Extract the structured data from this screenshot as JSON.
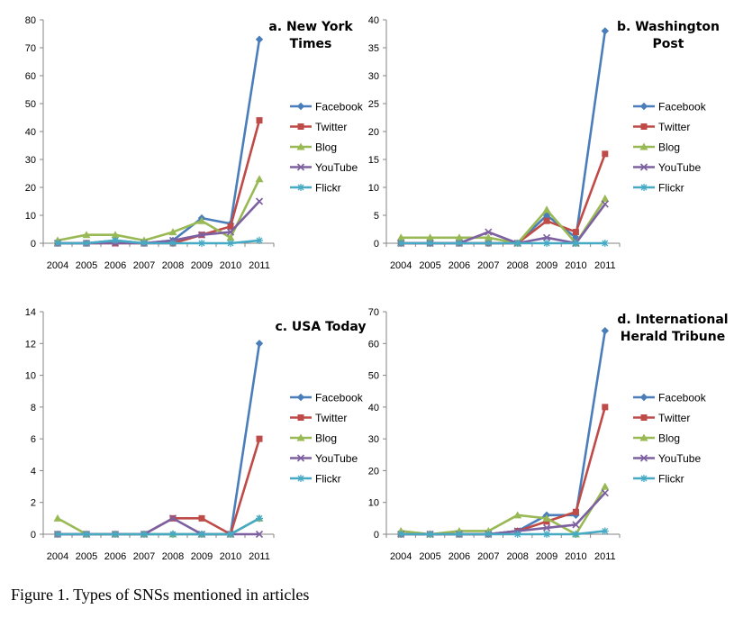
{
  "caption": "Figure 1. Types of SNSs mentioned in articles",
  "chart_data": [
    {
      "type": "line",
      "title_lines": [
        "a. New York",
        "Times"
      ],
      "categories": [
        "2004",
        "2005",
        "2006",
        "2007",
        "2008",
        "2009",
        "2010",
        "2011"
      ],
      "ylim": [
        0,
        80
      ],
      "yticks": [
        0,
        10,
        20,
        30,
        40,
        50,
        60,
        70,
        80
      ],
      "series": [
        {
          "name": "Facebook",
          "color": "#4a7ebb",
          "marker": "diamond",
          "values": [
            0,
            0,
            1,
            0,
            1,
            9,
            7,
            73
          ]
        },
        {
          "name": "Twitter",
          "color": "#be4b48",
          "marker": "square",
          "values": [
            0,
            0,
            0,
            0,
            0,
            3,
            6,
            44
          ]
        },
        {
          "name": "Blog",
          "color": "#98b954",
          "marker": "triangle",
          "values": [
            1,
            3,
            3,
            1,
            4,
            8,
            2,
            23
          ]
        },
        {
          "name": "YouTube",
          "color": "#7d60a0",
          "marker": "x",
          "values": [
            0,
            0,
            0,
            0,
            1,
            3,
            4,
            15
          ]
        },
        {
          "name": "Flickr",
          "color": "#46aac5",
          "marker": "star",
          "values": [
            0,
            0,
            1,
            0,
            0,
            0,
            0,
            1
          ]
        }
      ]
    },
    {
      "type": "line",
      "title_lines": [
        "b. Washington",
        "Post"
      ],
      "categories": [
        "2004",
        "2005",
        "2006",
        "2007",
        "2008",
        "2009",
        "2010",
        "2011"
      ],
      "ylim": [
        0,
        40
      ],
      "yticks": [
        0,
        5,
        10,
        15,
        20,
        25,
        30,
        35,
        40
      ],
      "series": [
        {
          "name": "Facebook",
          "color": "#4a7ebb",
          "marker": "diamond",
          "values": [
            0,
            0,
            0,
            0,
            0,
            5,
            1,
            38
          ]
        },
        {
          "name": "Twitter",
          "color": "#be4b48",
          "marker": "square",
          "values": [
            0,
            0,
            0,
            0,
            0,
            4,
            2,
            16
          ]
        },
        {
          "name": "Blog",
          "color": "#98b954",
          "marker": "triangle",
          "values": [
            1,
            1,
            1,
            1,
            0,
            6,
            0,
            8
          ]
        },
        {
          "name": "YouTube",
          "color": "#7d60a0",
          "marker": "x",
          "values": [
            0,
            0,
            0,
            2,
            0,
            1,
            0,
            7
          ]
        },
        {
          "name": "Flickr",
          "color": "#46aac5",
          "marker": "star",
          "values": [
            0,
            0,
            0,
            0,
            0,
            0,
            0,
            0
          ]
        }
      ]
    },
    {
      "type": "line",
      "title_lines": [
        "c. USA Today"
      ],
      "categories": [
        "2004",
        "2005",
        "2006",
        "2007",
        "2008",
        "2009",
        "2010",
        "2011"
      ],
      "ylim": [
        0,
        14
      ],
      "yticks": [
        0,
        2,
        4,
        6,
        8,
        10,
        12,
        14
      ],
      "series": [
        {
          "name": "Facebook",
          "color": "#4a7ebb",
          "marker": "diamond",
          "values": [
            0,
            0,
            0,
            0,
            0,
            0,
            0,
            12
          ]
        },
        {
          "name": "Twitter",
          "color": "#be4b48",
          "marker": "square",
          "values": [
            0,
            0,
            0,
            0,
            1,
            1,
            0,
            6
          ]
        },
        {
          "name": "Blog",
          "color": "#98b954",
          "marker": "triangle",
          "values": [
            1,
            0,
            0,
            0,
            0,
            0,
            0,
            1
          ]
        },
        {
          "name": "YouTube",
          "color": "#7d60a0",
          "marker": "x",
          "values": [
            0,
            0,
            0,
            0,
            1,
            0,
            0,
            0
          ]
        },
        {
          "name": "Flickr",
          "color": "#46aac5",
          "marker": "star",
          "values": [
            0,
            0,
            0,
            0,
            0,
            0,
            0,
            1
          ]
        }
      ]
    },
    {
      "type": "line",
      "title_lines": [
        "d. International",
        "Herald Tribune"
      ],
      "categories": [
        "2004",
        "2005",
        "2006",
        "2007",
        "2008",
        "2009",
        "2010",
        "2011"
      ],
      "ylim": [
        0,
        70
      ],
      "yticks": [
        0,
        10,
        20,
        30,
        40,
        50,
        60,
        70
      ],
      "series": [
        {
          "name": "Facebook",
          "color": "#4a7ebb",
          "marker": "diamond",
          "values": [
            0,
            0,
            0,
            0,
            1,
            6,
            6,
            64
          ]
        },
        {
          "name": "Twitter",
          "color": "#be4b48",
          "marker": "square",
          "values": [
            0,
            0,
            0,
            0,
            1,
            4,
            7,
            40
          ]
        },
        {
          "name": "Blog",
          "color": "#98b954",
          "marker": "triangle",
          "values": [
            1,
            0,
            1,
            1,
            6,
            5,
            0,
            15
          ]
        },
        {
          "name": "YouTube",
          "color": "#7d60a0",
          "marker": "x",
          "values": [
            0,
            0,
            0,
            0,
            1,
            2,
            3,
            13
          ]
        },
        {
          "name": "Flickr",
          "color": "#46aac5",
          "marker": "star",
          "values": [
            0,
            0,
            0,
            0,
            0,
            0,
            0,
            1
          ]
        }
      ]
    }
  ]
}
